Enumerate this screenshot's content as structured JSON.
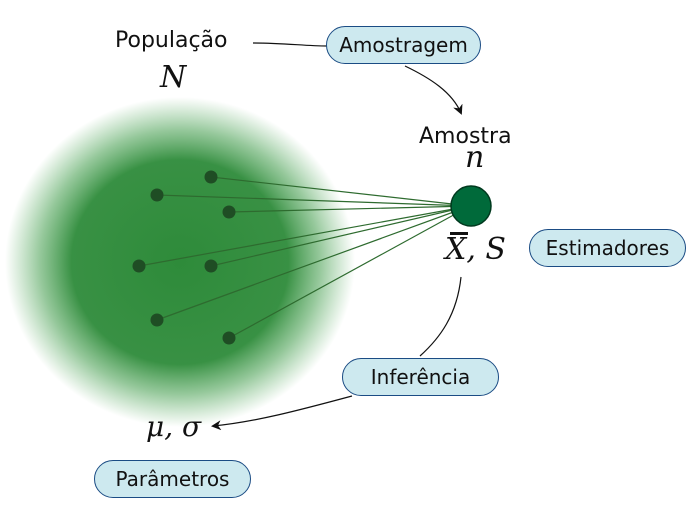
{
  "population": {
    "label": "População",
    "symbol": "N"
  },
  "sample": {
    "label": "Amostra",
    "symbol": "n",
    "estimators": "X, S"
  },
  "parameters": {
    "symbols": "μ, σ"
  },
  "tags": {
    "sampling": "Amostragem",
    "estimators": "Estimadores",
    "inference": "Inferência",
    "parameters": "Parâmetros"
  },
  "colors": {
    "population_fill": "#2e8b3a",
    "population_points": "#1f4d24",
    "sample_fill": "#006a3a",
    "link_lines": "#2e6b2f",
    "tag_fill": "#cde9ef",
    "tag_border": "#1b4c84"
  }
}
